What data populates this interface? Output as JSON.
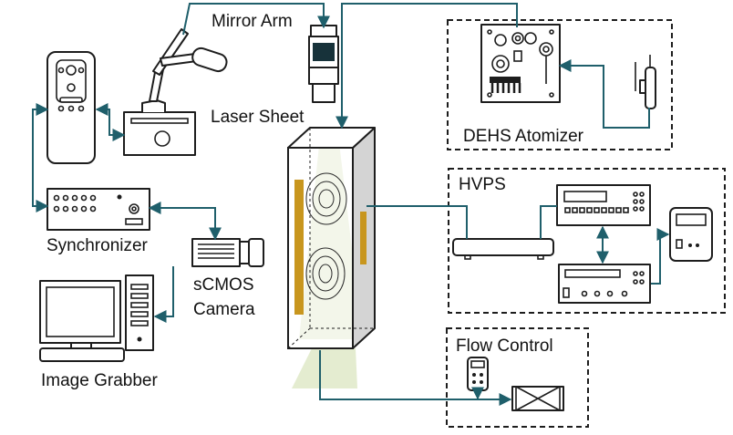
{
  "labels": {
    "mirror_arm": "Mirror Arm",
    "laser_sheet": "Laser Sheet",
    "dehs_atomizer": "DEHS Atomizer",
    "hvps": "HVPS",
    "synchronizer": "Synchronizer",
    "camera_line1": "sCMOS",
    "camera_line2": "Camera",
    "image_grabber": "Image Grabber",
    "flow_control": "Flow Control"
  },
  "colors": {
    "wire": "#1f5f6b",
    "electrode": "#c8961e",
    "laser_sheet": "#dfe9c8",
    "outline": "#1d1d1d",
    "chamber_side": "#d4d4d4"
  }
}
